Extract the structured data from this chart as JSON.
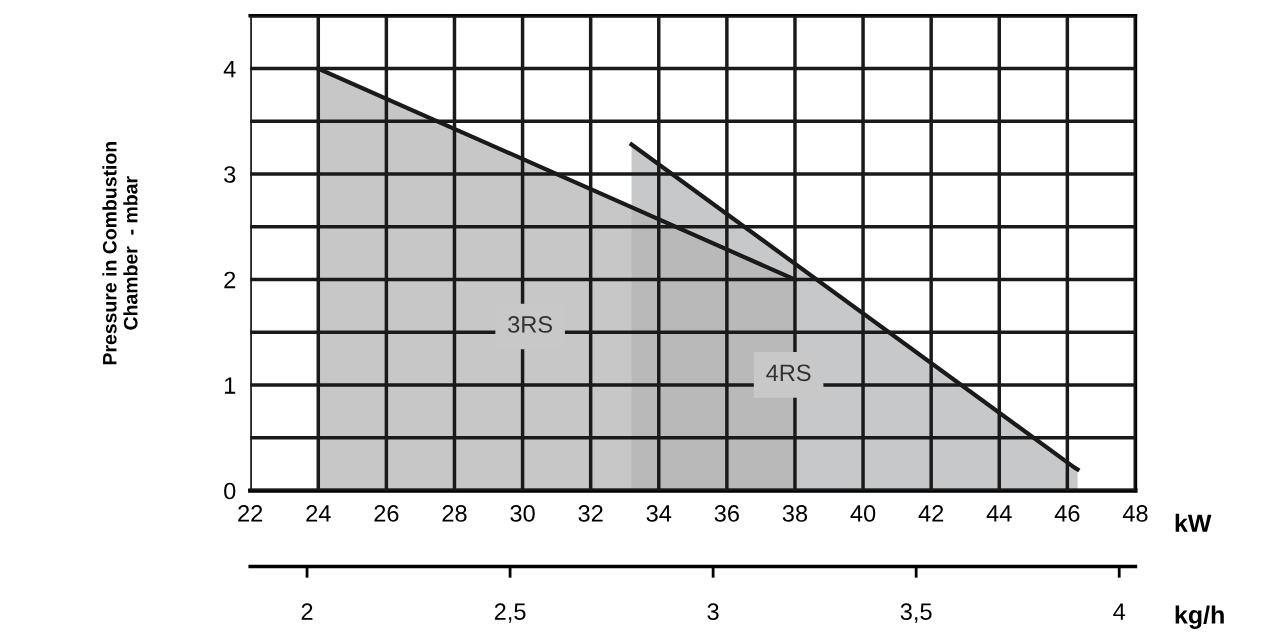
{
  "chart_data": {
    "type": "area",
    "xlabel": "kW",
    "ylabel": "Pressure in Combustion\nChamber  - mbar",
    "x2label": "kg/h",
    "series": [
      {
        "name": "4RS",
        "x": [
          33.2,
          33.2,
          46.2,
          46.3,
          46.3
        ],
        "values": [
          0,
          3.28,
          0.22,
          0.2,
          0
        ],
        "color": "#b4b5b8"
      },
      {
        "name": "3RS",
        "x": [
          24,
          24,
          38,
          38
        ],
        "values": [
          0,
          4,
          2,
          0
        ],
        "color": "#b4b4b4"
      }
    ],
    "xlim": [
      22,
      48
    ],
    "xticks": [
      22,
      24,
      26,
      28,
      30,
      32,
      34,
      36,
      38,
      40,
      42,
      44,
      46,
      48
    ],
    "ylim": [
      0,
      4.5
    ],
    "yticks": [
      0,
      {
        "value": 0.5,
        "label": null
      },
      1,
      {
        "value": 1.5,
        "label": null
      },
      2,
      {
        "value": 2.5,
        "label": null
      },
      3,
      {
        "value": 3.5,
        "label": null
      },
      4,
      {
        "value": 4.5,
        "label": null
      }
    ],
    "x2lim": [
      1.86,
      4.04
    ],
    "x2ticks": [
      2,
      {
        "value": 2.5,
        "label": "2,5"
      },
      3,
      {
        "value": 3.5,
        "label": "3,5"
      },
      4
    ],
    "grid": true
  }
}
